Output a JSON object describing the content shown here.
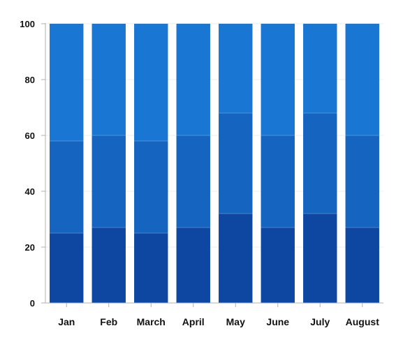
{
  "chart_data": {
    "type": "bar",
    "stacked": "percent",
    "categories": [
      "Jan",
      "Feb",
      "March",
      "April",
      "May",
      "June",
      "July",
      "August"
    ],
    "series": [
      {
        "color": "#0d47a1",
        "values": [
          25,
          27,
          25,
          27,
          32,
          27,
          32,
          27
        ]
      },
      {
        "color": "#1565c0",
        "values": [
          33,
          33,
          33,
          33,
          36,
          33,
          36,
          33
        ]
      },
      {
        "color": "#1976d2",
        "values": [
          42,
          40,
          42,
          40,
          32,
          40,
          32,
          40
        ]
      }
    ],
    "ylim": [
      0,
      100
    ],
    "yticks": [
      "0",
      "20",
      "40",
      "60",
      "80",
      "100"
    ],
    "grid": true,
    "legend": false,
    "title": "",
    "xlabel": "",
    "ylabel": ""
  }
}
